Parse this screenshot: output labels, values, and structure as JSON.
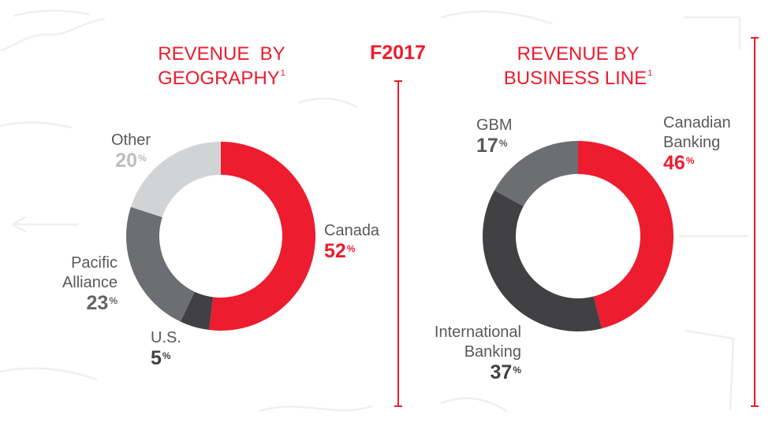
{
  "header": {
    "period": "F2017"
  },
  "colors": {
    "accent": "#ec1c2d",
    "label_text": "#58595b"
  },
  "chart_data": [
    {
      "type": "pie",
      "donut": true,
      "title_lines": [
        "REVENUE  BY",
        "GEOGRAPHY"
      ],
      "title_footnote": "1",
      "unit": "%",
      "slices": [
        {
          "label": "Canada",
          "value": 52,
          "color": "#ed1c2e",
          "value_color": "#ed1c2e"
        },
        {
          "label": "U.S.",
          "value": 5,
          "color": "#414042",
          "value_color": "#414042"
        },
        {
          "label": "Pacific Alliance",
          "value": 23,
          "color": "#6d6e71",
          "value_color": "#636466"
        },
        {
          "label": "Other",
          "value": 20,
          "color": "#d1d3d4",
          "value_color": "#bcbec0"
        }
      ]
    },
    {
      "type": "pie",
      "donut": true,
      "title_lines": [
        "REVENUE BY",
        "BUSINESS LINE"
      ],
      "title_footnote": "1",
      "unit": "%",
      "slices": [
        {
          "label": "Canadian Banking",
          "value": 46,
          "color": "#ed1c2e",
          "value_color": "#ed1c2e"
        },
        {
          "label": "International Banking",
          "value": 37,
          "color": "#414042",
          "value_color": "#414042"
        },
        {
          "label": "GBM",
          "value": 17,
          "color": "#6d6e71",
          "value_color": "#58595b"
        }
      ]
    }
  ]
}
